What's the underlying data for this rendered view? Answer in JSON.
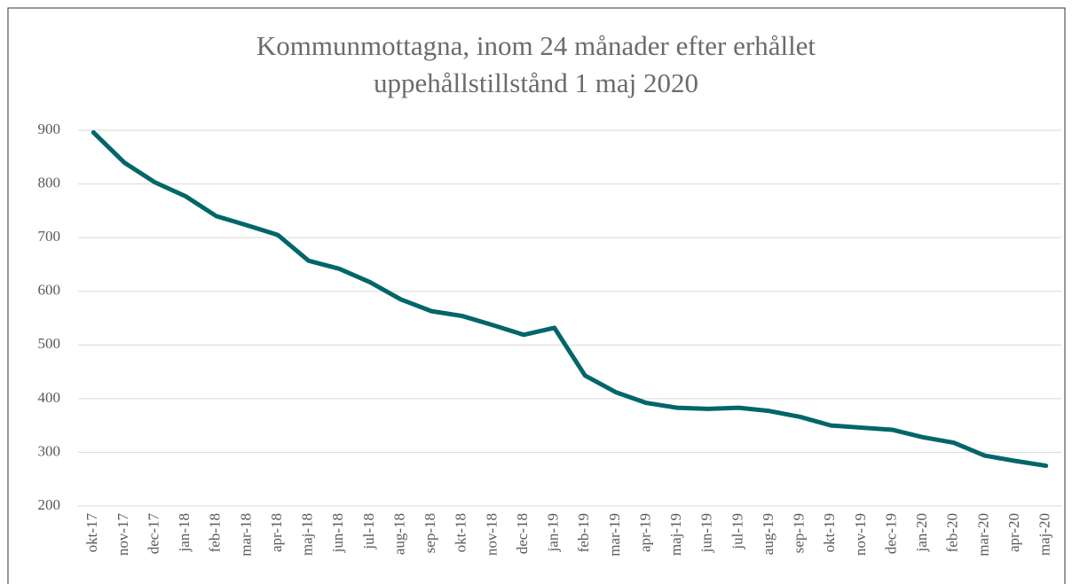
{
  "chart_data": {
    "type": "line",
    "title": [
      "Kommunmottagna, inom 24 månader efter erhållet",
      "uppehållstillstånd 1 maj 2020"
    ],
    "categories": [
      "okt-17",
      "nov-17",
      "dec-17",
      "jan-18",
      "feb-18",
      "mar-18",
      "apr-18",
      "maj-18",
      "jun-18",
      "jul-18",
      "aug-18",
      "sep-18",
      "okt-18",
      "nov-18",
      "dec-18",
      "jan-19",
      "feb-19",
      "mar-19",
      "apr-19",
      "maj-19",
      "jun-19",
      "jul-19",
      "aug-19",
      "sep-19",
      "okt-19",
      "nov-19",
      "dec-19",
      "jan-20",
      "feb-20",
      "mar-20",
      "apr-20",
      "maj-20"
    ],
    "values": [
      896,
      840,
      803,
      777,
      740,
      723,
      705,
      657,
      642,
      617,
      585,
      563,
      554,
      537,
      519,
      532,
      443,
      412,
      392,
      383,
      381,
      383,
      377,
      366,
      350,
      346,
      342,
      328,
      318,
      294,
      284,
      275
    ],
    "color": "#00666a",
    "ylim": [
      200,
      900
    ],
    "yticks": [
      200,
      300,
      400,
      500,
      600,
      700,
      800,
      900
    ],
    "grid": true
  }
}
